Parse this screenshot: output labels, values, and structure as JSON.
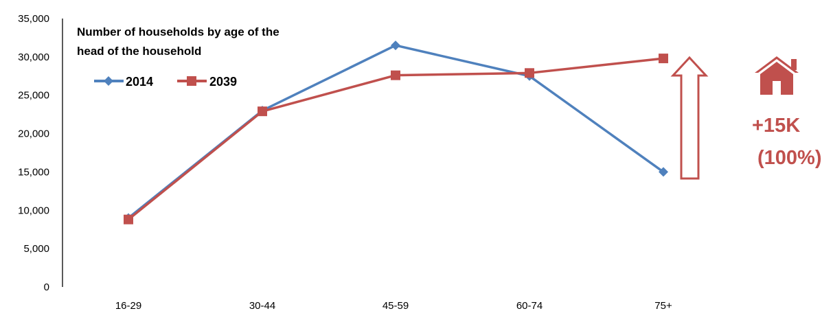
{
  "chart_data": {
    "type": "line",
    "title": "Number of households by age of the head of the household",
    "title_lines": [
      "Number of households by age of the",
      "head of the household"
    ],
    "categories": [
      "16-29",
      "30-44",
      "45-59",
      "60-74",
      "75+"
    ],
    "ylim": [
      0,
      35000
    ],
    "yticks": [
      0,
      5000,
      10000,
      15000,
      20000,
      25000,
      30000,
      35000
    ],
    "ytick_labels": [
      "0",
      "5,000",
      "10,000",
      "15,000",
      "20,000",
      "25,000",
      "30,000",
      "35,000"
    ],
    "grid": false,
    "legend_position": "top-left",
    "series": [
      {
        "name": "2014",
        "color": "#4f81bd",
        "marker": "diamond",
        "values": [
          9000,
          23000,
          31500,
          27500,
          15000
        ]
      },
      {
        "name": "2039",
        "color": "#c0504d",
        "marker": "square",
        "values": [
          8800,
          22900,
          27600,
          27900,
          29800
        ]
      }
    ],
    "annotations": {
      "arrow": "up-arrow-icon",
      "house": "house-icon",
      "change_text": "+15K",
      "percent_text": "(100%)",
      "color": "#c0504d"
    }
  }
}
